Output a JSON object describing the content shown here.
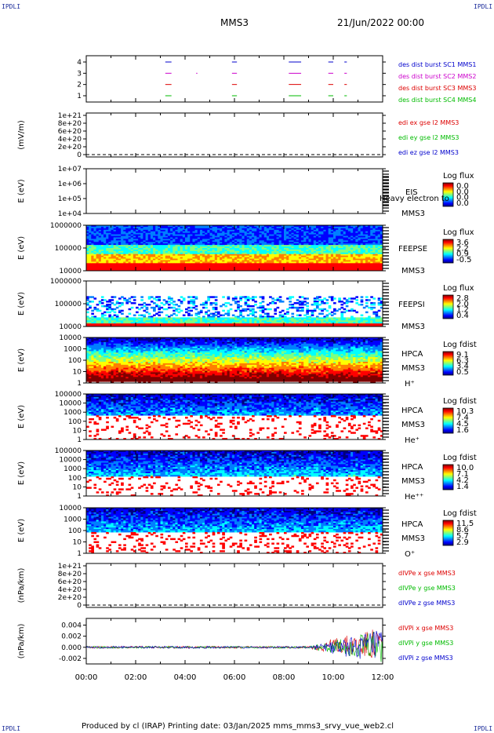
{
  "corners": {
    "tl": "IPDLI",
    "tr": "IPDLI",
    "bl": "IPDLI",
    "br": "IPDLI"
  },
  "header": {
    "spacecraft": "MMS3",
    "date": "21/Jun/2022 00:00"
  },
  "footer": "Produced by cl (IRAP)   Printing date: 03/Jan/2025   mms_mms3_srvy_vue_web2.cl",
  "colors": {
    "red": "#dd0000",
    "green": "#00bb00",
    "blue": "#0000cc",
    "magenta": "#cc00cc"
  },
  "chart_data": [
    {
      "type": "timeline",
      "ylabel": "",
      "yticks": [
        "1",
        "2",
        "3",
        "4"
      ],
      "series": [
        {
          "name": "des dist burst SC1 MMS1",
          "color": "#0000cc",
          "level": 4,
          "intervals": [
            [
              3.2,
              3.45
            ],
            [
              5.9,
              6.1
            ],
            [
              8.2,
              8.7
            ],
            [
              9.8,
              10.0
            ],
            [
              10.45,
              10.55
            ]
          ]
        },
        {
          "name": "des dist burst SC2 MMS2",
          "color": "#cc00cc",
          "level": 3,
          "intervals": [
            [
              3.2,
              3.45
            ],
            [
              4.45,
              4.5
            ],
            [
              5.9,
              6.1
            ],
            [
              8.2,
              8.7
            ],
            [
              9.8,
              10.0
            ],
            [
              10.45,
              10.55
            ]
          ]
        },
        {
          "name": "des dist burst SC3 MMS3",
          "color": "#dd0000",
          "level": 2,
          "intervals": [
            [
              3.2,
              3.45
            ],
            [
              5.9,
              6.1
            ],
            [
              8.2,
              8.7
            ],
            [
              9.8,
              10.0
            ],
            [
              10.45,
              10.55
            ]
          ]
        },
        {
          "name": "des dist burst SC4 MMS4",
          "color": "#00bb00",
          "level": 1,
          "intervals": [
            [
              3.2,
              3.45
            ],
            [
              5.9,
              6.1
            ],
            [
              8.2,
              8.7
            ],
            [
              9.8,
              10.0
            ],
            [
              10.45,
              10.55
            ]
          ]
        }
      ]
    },
    {
      "type": "line",
      "ylabel": "(mV/m)",
      "yticks": [
        "0",
        "2e+20",
        "4e+20",
        "6e+20",
        "8e+20",
        "1e+21"
      ],
      "series": [
        {
          "name": "edi ex gse l2 MMS3",
          "color": "#dd0000"
        },
        {
          "name": "edi ey gse l2 MMS3",
          "color": "#00bb00"
        },
        {
          "name": "edi ez gse l2 MMS3",
          "color": "#0000cc"
        }
      ]
    },
    {
      "type": "heatmap",
      "ylabel": "E (eV)",
      "yticks": [
        "1e+04",
        "1e+05",
        "1e+06",
        "1e+07"
      ],
      "labels": [
        "EIS",
        "MMS3"
      ],
      "overlay": "Heavy electron to",
      "colorbar": {
        "title": "Log flux",
        "values": [
          "0.0",
          "0.0",
          "0.0",
          "0.0"
        ]
      }
    },
    {
      "type": "heatmap",
      "ylabel": "E (eV)",
      "yticks": [
        "10000",
        "100000",
        "1000000"
      ],
      "labels": [
        "FEEPSE",
        "MMS3"
      ],
      "colorbar": {
        "title": "Log flux",
        "values": [
          "3.6",
          "2.2",
          "0.9",
          "-0.5"
        ]
      }
    },
    {
      "type": "heatmap",
      "ylabel": "E (eV)",
      "yticks": [
        "10000",
        "100000",
        "1000000"
      ],
      "labels": [
        "FEEPSI",
        "MMS3"
      ],
      "colorbar": {
        "title": "Log flux",
        "values": [
          "2.8",
          "2.0",
          "1.2",
          "0.4"
        ]
      }
    },
    {
      "type": "heatmap",
      "ylabel": "E (eV)",
      "yticks": [
        "1",
        "10",
        "100",
        "1000",
        "10000"
      ],
      "labels": [
        "HPCA",
        "MMS3",
        "H⁺"
      ],
      "colorbar": {
        "title": "Log fdist",
        "values": [
          "9.1",
          "6.3",
          "3.4",
          "0.5"
        ]
      }
    },
    {
      "type": "heatmap",
      "ylabel": "E (eV)",
      "yticks": [
        "1",
        "10",
        "100",
        "1000",
        "10000",
        "100000"
      ],
      "labels": [
        "HPCA",
        "MMS3",
        "He⁺"
      ],
      "colorbar": {
        "title": "Log fdist",
        "values": [
          "10.3",
          "7.4",
          "4.5",
          "1.6"
        ]
      }
    },
    {
      "type": "heatmap",
      "ylabel": "E (eV)",
      "yticks": [
        "1",
        "10",
        "100",
        "1000",
        "10000",
        "100000"
      ],
      "labels": [
        "HPCA",
        "MMS3",
        "He⁺⁺"
      ],
      "colorbar": {
        "title": "Log fdist",
        "values": [
          "10.0",
          "7.1",
          "4.2",
          "1.4"
        ]
      }
    },
    {
      "type": "heatmap",
      "ylabel": "E (eV)",
      "yticks": [
        "1",
        "10",
        "100",
        "1000",
        "10000"
      ],
      "labels": [
        "HPCA",
        "MMS3",
        "O⁺"
      ],
      "colorbar": {
        "title": "Log fdist",
        "values": [
          "11.5",
          "8.6",
          "5.7",
          "2.9"
        ]
      }
    },
    {
      "type": "line",
      "ylabel": "(nPa/km)",
      "yticks": [
        "0",
        "2e+20",
        "4e+20",
        "6e+20",
        "8e+20",
        "1e+21"
      ],
      "series": [
        {
          "name": "dIVPe x gse MMS3",
          "color": "#dd0000"
        },
        {
          "name": "dIVPe y gse MMS3",
          "color": "#00bb00"
        },
        {
          "name": "dIVPe z gse MMS3",
          "color": "#0000cc"
        }
      ]
    },
    {
      "type": "line",
      "ylabel": "(nPa/km)",
      "yticks": [
        "-0.002",
        "0.000",
        "0.002",
        "0.004"
      ],
      "ylim": [
        -0.003,
        0.0052
      ],
      "series": [
        {
          "name": "dIVPi x gse MMS3",
          "color": "#dd0000"
        },
        {
          "name": "dIVPi y gse MMS3",
          "color": "#00bb00"
        },
        {
          "name": "dIVPi z gse MMS3",
          "color": "#0000cc"
        }
      ]
    }
  ],
  "xaxis": {
    "ticks": [
      "00:00",
      "02:00",
      "04:00",
      "06:00",
      "08:00",
      "10:00",
      "12:00"
    ]
  }
}
